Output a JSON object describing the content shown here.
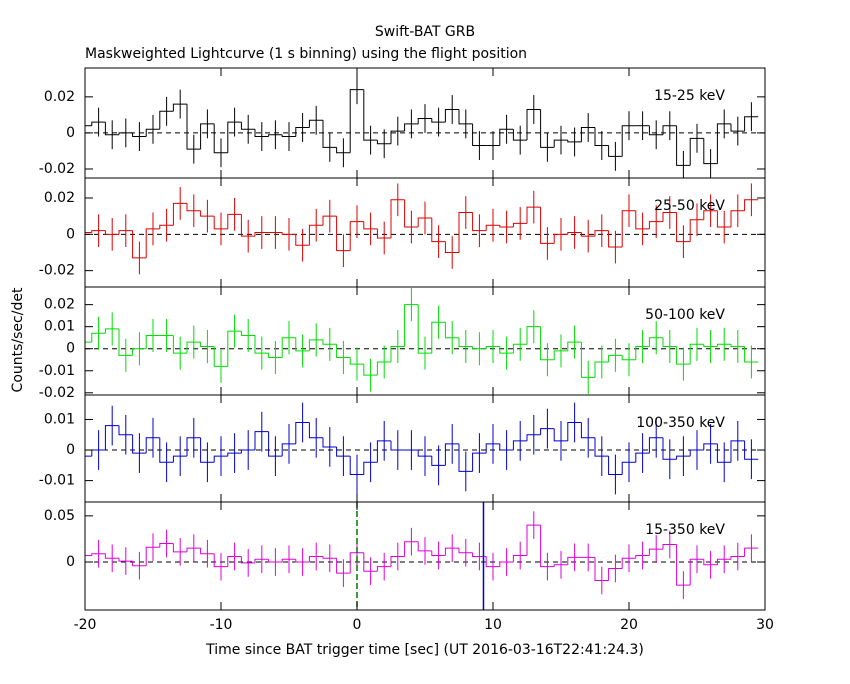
{
  "figure": {
    "title": "Swift-BAT GRB",
    "subtitle": "Maskweighted Lightcurve (1 s binning) using the flight position",
    "xlabel": "Time since BAT trigger time [sec] (UT 2016-03-16T22:41:24.3)",
    "ylabel": "Counts/sec/det",
    "xlim": [
      -20,
      30
    ],
    "xticks": [
      -20,
      -10,
      0,
      10,
      20,
      30
    ],
    "bin_width": 1,
    "x": [
      -20,
      -19,
      -18,
      -17,
      -16,
      -15,
      -14,
      -13,
      -12,
      -11,
      -10,
      -9,
      -8,
      -7,
      -6,
      -5,
      -4,
      -3,
      -2,
      -1,
      0,
      1,
      2,
      3,
      4,
      5,
      6,
      7,
      8,
      9,
      10,
      11,
      12,
      13,
      14,
      15,
      16,
      17,
      18,
      19,
      20,
      21,
      22,
      23,
      24,
      25,
      26,
      27,
      28,
      29
    ]
  },
  "chart_data": [
    {
      "type": "step",
      "label": "15-25 keV",
      "color": "#000000",
      "ylim": [
        -0.025,
        0.036
      ],
      "yticks": [
        -0.02,
        0,
        0.02
      ],
      "error": 0.008,
      "values": [
        0.004,
        0.006,
        -0.001,
        0,
        -0.002,
        0.002,
        0.012,
        0.016,
        -0.009,
        0.005,
        -0.011,
        0.006,
        0.002,
        -0.002,
        -0.001,
        -0.002,
        0.003,
        0.007,
        -0.008,
        -0.011,
        0.024,
        -0.004,
        -0.006,
        0.001,
        0.005,
        0.008,
        0.006,
        0.013,
        0.005,
        -0.007,
        -0.007,
        0.002,
        -0.004,
        0.013,
        -0.008,
        -0.004,
        -0.005,
        0.003,
        -0.007,
        -0.013,
        0.004,
        0.004,
        -0.001,
        0.004,
        -0.018,
        -0.003,
        -0.017,
        0.005,
        0.001,
        0.009
      ]
    },
    {
      "type": "step",
      "label": "25-50 keV",
      "color": "#dd0000",
      "ylim": [
        -0.029,
        0.031
      ],
      "yticks": [
        -0.02,
        0,
        0.02
      ],
      "error": 0.009,
      "values": [
        0.001,
        0.002,
        0,
        0.002,
        -0.013,
        0.003,
        0.005,
        0.017,
        0.013,
        0.01,
        0.003,
        0.011,
        -0.001,
        0.001,
        0.001,
        0,
        -0.006,
        0.005,
        0.01,
        -0.009,
        0.007,
        0.003,
        -0.002,
        0.019,
        0.004,
        0.009,
        -0.004,
        -0.01,
        0.012,
        0.002,
        0.005,
        0.004,
        0.006,
        0.015,
        -0.005,
        0,
        0.001,
        -0.001,
        0.002,
        -0.007,
        0.013,
        0.003,
        0.007,
        0.012,
        -0.004,
        0.008,
        0.013,
        0.004,
        0.013,
        0.019
      ]
    },
    {
      "type": "step",
      "label": "50-100 keV",
      "color": "#00dd00",
      "ylim": [
        -0.021,
        0.028
      ],
      "yticks": [
        -0.02,
        -0.01,
        0,
        0.01,
        0.02
      ],
      "error": 0.0075,
      "values": [
        0.003,
        0.007,
        0.009,
        -0.003,
        0,
        0.006,
        0.006,
        -0.002,
        0.003,
        0.001,
        -0.008,
        0.008,
        0.006,
        -0.002,
        -0.004,
        0.005,
        -0.001,
        0.004,
        0.002,
        -0.004,
        -0.007,
        -0.012,
        -0.006,
        0.001,
        0.02,
        -0.002,
        0.012,
        0.005,
        0.001,
        0,
        0.001,
        -0.002,
        0.002,
        0.01,
        -0.005,
        -0.001,
        0.003,
        -0.013,
        -0.006,
        -0.003,
        -0.005,
        0.001,
        0.005,
        0.001,
        -0.007,
        0.002,
        0.001,
        0.002,
        0.001,
        -0.006
      ]
    },
    {
      "type": "step",
      "label": "100-350 keV",
      "color": "#0000cc",
      "ylim": [
        -0.017,
        0.018
      ],
      "yticks": [
        -0.01,
        0,
        0.01
      ],
      "error": 0.0065,
      "values": [
        -0.002,
        0,
        0.008,
        0.005,
        -0.001,
        0.004,
        -0.004,
        -0.002,
        0.004,
        -0.004,
        -0.002,
        -0.001,
        0,
        0.006,
        -0.002,
        0.002,
        0.009,
        0.004,
        0.001,
        -0.002,
        -0.008,
        -0.004,
        0.003,
        0,
        0,
        -0.002,
        -0.005,
        0.002,
        -0.007,
        -0.001,
        0.002,
        0,
        0.003,
        0.005,
        0.007,
        0.003,
        0.009,
        0.004,
        -0.002,
        -0.008,
        -0.004,
        -0.001,
        0.004,
        -0.003,
        -0.002,
        0,
        0.002,
        -0.004,
        0.003,
        -0.003
      ]
    },
    {
      "type": "step",
      "label": "15-350 keV",
      "color": "#dd00dd",
      "ylim": [
        -0.052,
        0.065
      ],
      "yticks": [
        0,
        0.05
      ],
      "error": 0.015,
      "vlines": [
        {
          "x": 0,
          "color": "#007700",
          "dashed": true
        },
        {
          "x": 9.3,
          "color": "#0000cc",
          "dashed": false
        }
      ],
      "values": [
        0.007,
        0.009,
        0.004,
        0.001,
        -0.004,
        0.016,
        0.02,
        0.011,
        0.015,
        0.009,
        -0.005,
        0.006,
        -0.001,
        0.003,
        0,
        0.003,
        0,
        0.006,
        0.004,
        -0.012,
        0.01,
        -0.01,
        -0.005,
        0.006,
        0.022,
        0.012,
        0.007,
        0.015,
        0.01,
        0.006,
        -0.005,
        0,
        0.007,
        0.04,
        -0.005,
        -0.003,
        0.005,
        0.005,
        -0.02,
        -0.007,
        0.004,
        0.007,
        0.014,
        0.019,
        -0.025,
        0.003,
        -0.003,
        0.003,
        0.006,
        0.015
      ]
    }
  ]
}
